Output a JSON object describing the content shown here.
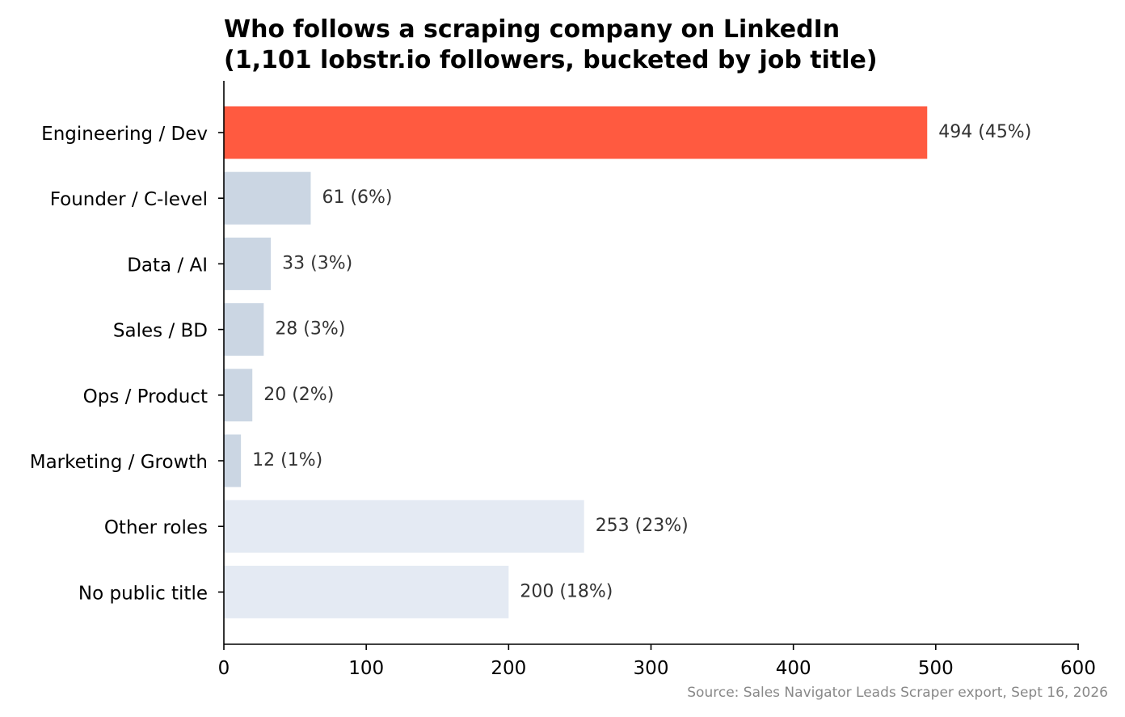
{
  "chart_data": {
    "type": "bar",
    "orientation": "horizontal",
    "title": [
      "Who follows a scraping company on LinkedIn",
      "(1,101 lobstr.io followers, bucketed by job title)"
    ],
    "categories": [
      "Engineering / Dev",
      "Founder / C-level",
      "Data / AI",
      "Sales / BD",
      "Ops / Product",
      "Marketing / Growth",
      "Other roles",
      "No public title"
    ],
    "values": [
      494,
      61,
      33,
      28,
      20,
      12,
      253,
      200
    ],
    "value_labels": [
      "494 (45%)",
      "61 (6%)",
      "33 (3%)",
      "28 (3%)",
      "20 (2%)",
      "12 (1%)",
      "253 (23%)",
      "200 (18%)"
    ],
    "bar_colors": [
      "#ff5a40",
      "#cbd6e3",
      "#cbd6e3",
      "#cbd6e3",
      "#cbd6e3",
      "#cbd6e3",
      "#e4eaf3",
      "#e4eaf3"
    ],
    "xlim": [
      0,
      600
    ],
    "xticks": [
      0,
      100,
      200,
      300,
      400,
      500,
      600
    ],
    "xlabel": "",
    "ylabel": "",
    "grid": false,
    "legend": "none",
    "source_note": "Source: Sales Navigator Leads Scraper export, Sept 16, 2026"
  }
}
